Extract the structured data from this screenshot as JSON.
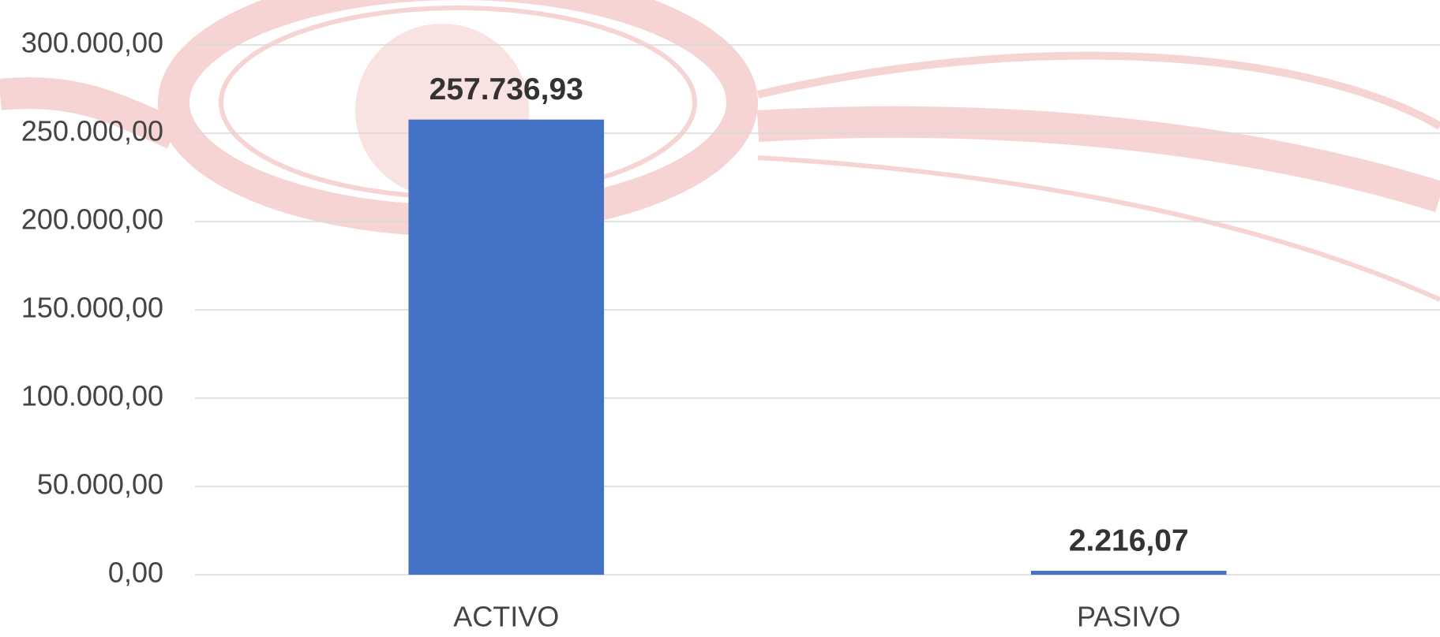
{
  "chart_data": {
    "type": "bar",
    "categories": [
      "ACTIVO",
      "PASIVO"
    ],
    "values": [
      257736.93,
      2216.07
    ],
    "value_labels": [
      "257.736,93",
      "2.216,07"
    ],
    "color": "#4472c4",
    "ylim": [
      0,
      300000
    ],
    "yticks": [
      {
        "value": 0,
        "label": "0,00"
      },
      {
        "value": 50000,
        "label": "50.000,00"
      },
      {
        "value": 100000,
        "label": "100.000,00"
      },
      {
        "value": 150000,
        "label": "150.000,00"
      },
      {
        "value": 200000,
        "label": "200.000,00"
      },
      {
        "value": 250000,
        "label": "250.000,00"
      },
      {
        "value": 300000,
        "label": "300.000,00"
      }
    ],
    "grid": true
  }
}
